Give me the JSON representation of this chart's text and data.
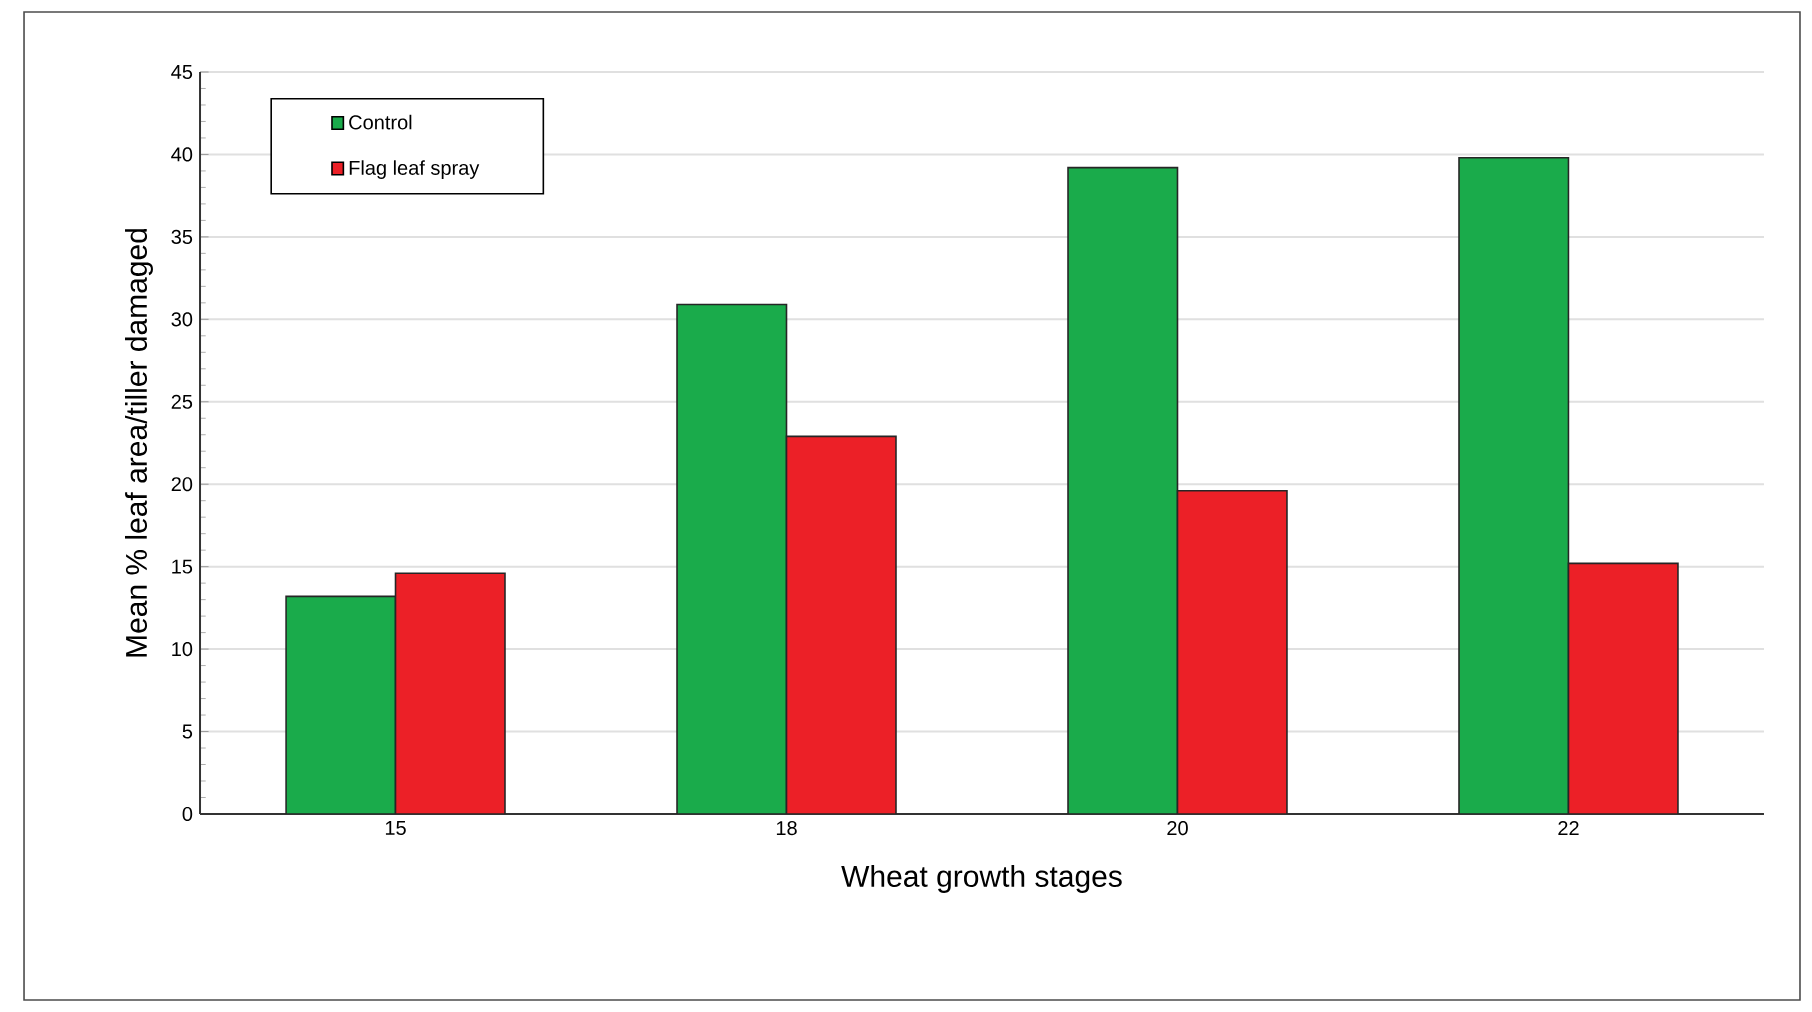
{
  "chart_data": {
    "type": "bar",
    "xlabel": "Wheat growth stages",
    "ylabel": "Mean % leaf area/tiller damaged",
    "categories": [
      "15",
      "18",
      "20",
      "22"
    ],
    "series": [
      {
        "name": "Control",
        "color": "#1aab4b",
        "values": [
          13.2,
          30.9,
          39.2,
          39.8
        ]
      },
      {
        "name": "Flag leaf spray",
        "color": "#ec2027",
        "values": [
          14.6,
          22.9,
          19.6,
          15.2
        ]
      }
    ],
    "ylim": [
      0,
      45
    ],
    "yticks": [
      0,
      5,
      10,
      15,
      20,
      25,
      30,
      35,
      40,
      45
    ],
    "grid": "y",
    "legend": "top left"
  }
}
